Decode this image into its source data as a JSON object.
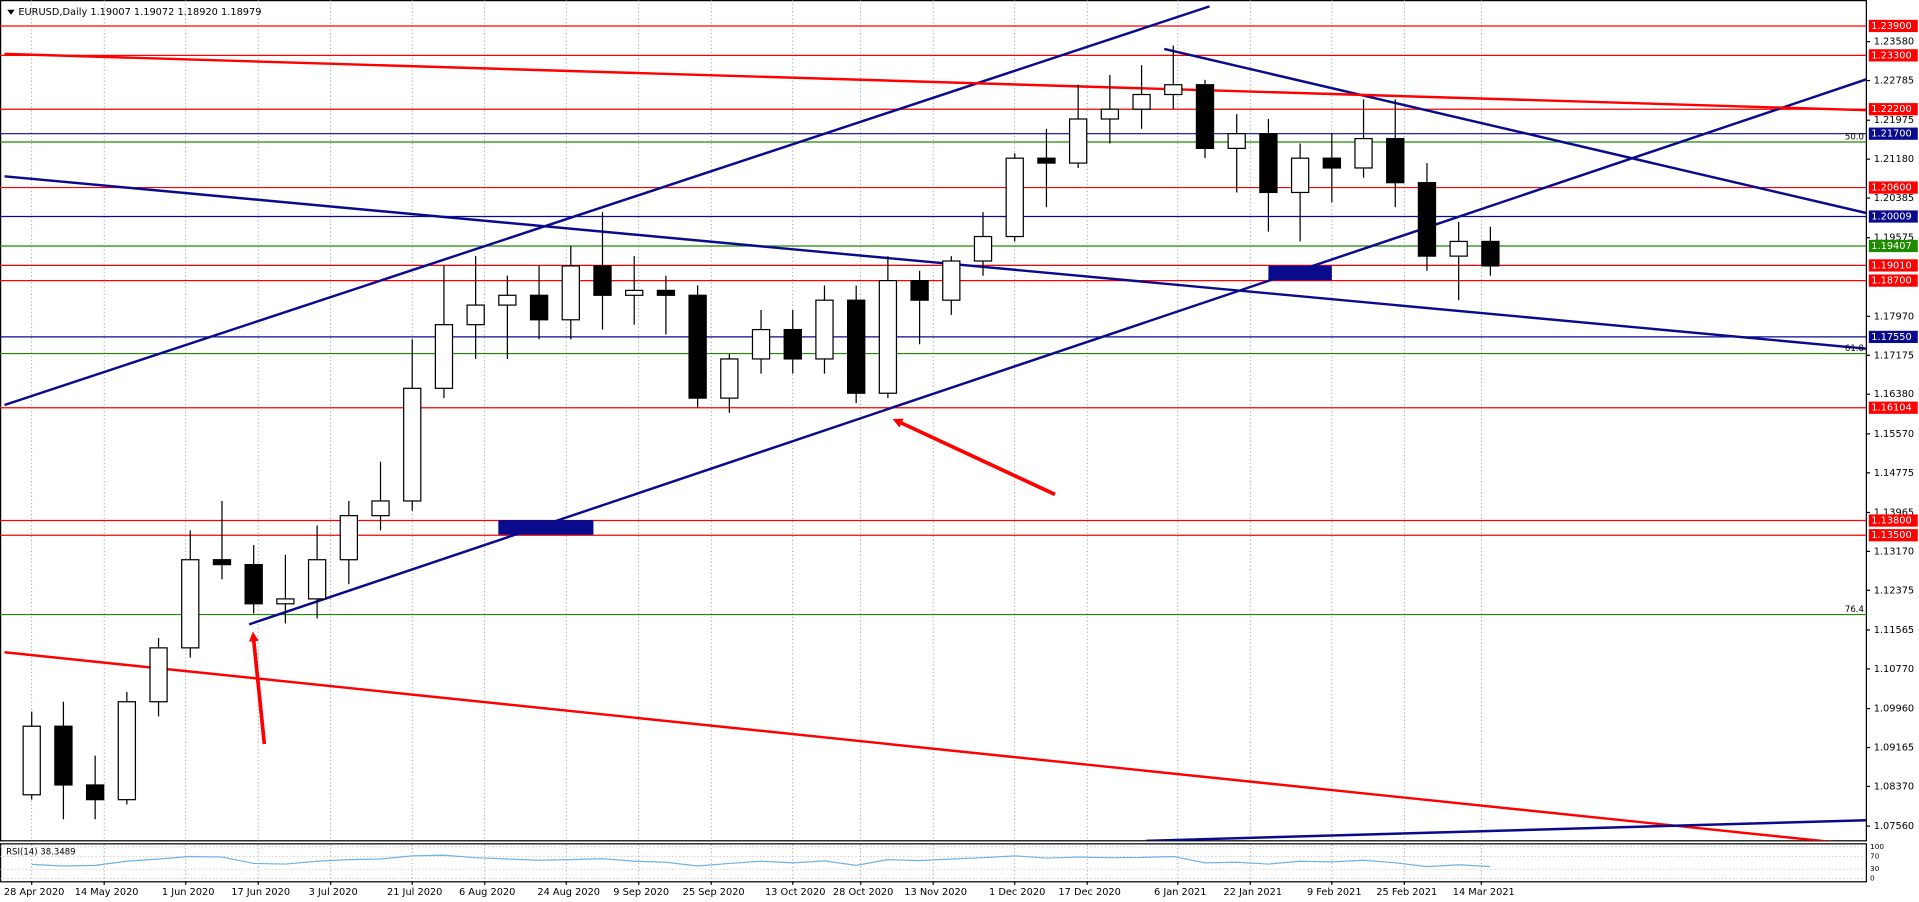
{
  "chart_data": {
    "type": "candlestick",
    "title": "EURUSD,Daily  1.19007 1.19072 1.18920 1.18979",
    "xlim": [
      "2020-04-21",
      "2021-06-07"
    ],
    "xticks": [
      {
        "value": "2020-04-28",
        "label": "28 Apr 2020"
      },
      {
        "value": "2020-05-14",
        "label": "14 May 2020"
      },
      {
        "value": "2020-06-01",
        "label": "1 Jun 2020"
      },
      {
        "value": "2020-06-17",
        "label": "17 Jun 2020"
      },
      {
        "value": "2020-07-03",
        "label": "3 Jul 2020"
      },
      {
        "value": "2020-07-21",
        "label": "21 Jul 2020"
      },
      {
        "value": "2020-08-06",
        "label": "6 Aug 2020"
      },
      {
        "value": "2020-08-24",
        "label": "24 Aug 2020"
      },
      {
        "value": "2020-09-09",
        "label": "9 Sep 2020"
      },
      {
        "value": "2020-09-25",
        "label": "25 Sep 2020"
      },
      {
        "value": "2020-10-13",
        "label": "13 Oct 2020"
      },
      {
        "value": "2020-10-28",
        "label": "28 Oct 2020"
      },
      {
        "value": "2020-11-13",
        "label": "13 Nov 2020"
      },
      {
        "value": "2020-12-01",
        "label": "1 Dec 2020"
      },
      {
        "value": "2020-12-17",
        "label": "17 Dec 2020"
      },
      {
        "value": "2021-01-06",
        "label": "6 Jan 2021"
      },
      {
        "value": "2021-01-22",
        "label": "22 Jan 2021"
      },
      {
        "value": "2021-02-09",
        "label": "9 Feb 2021"
      },
      {
        "value": "2021-02-25",
        "label": "25 Feb 2021"
      },
      {
        "value": "2021-03-14",
        "label": "14 Mar 2021"
      }
    ],
    "ylim": [
      1.0726,
      1.2443
    ],
    "yticks": [
      {
        "value": 1.2358,
        "label": "1.23580"
      },
      1.22785,
      1.21975,
      {
        "value": 1.2118,
        "label": "1.21180"
      },
      1.20385,
      1.19575,
      {
        "value": 1.1797,
        "label": "1.17970"
      },
      1.17175,
      {
        "value": 1.1638,
        "label": "1.16380"
      },
      {
        "value": 1.1557,
        "label": "1.15570"
      },
      1.14775,
      1.13965,
      {
        "value": 1.1317,
        "label": "1.13170"
      },
      1.12375,
      1.11565,
      {
        "value": 1.1077,
        "label": "1.10770"
      },
      {
        "value": 1.0996,
        "label": "1.09960"
      },
      1.09165,
      {
        "value": 1.0837,
        "label": "1.08370"
      },
      {
        "value": 1.0756,
        "label": "1.07560"
      }
    ],
    "x": [
      "2020-04-28",
      "2020-05-05",
      "2020-05-12",
      "2020-05-19",
      "2020-05-26",
      "2020-06-02",
      "2020-06-09",
      "2020-06-16",
      "2020-06-23",
      "2020-06-30",
      "2020-07-07",
      "2020-07-14",
      "2020-07-21",
      "2020-07-28",
      "2020-08-04",
      "2020-08-11",
      "2020-08-18",
      "2020-08-25",
      "2020-09-01",
      "2020-09-08",
      "2020-09-15",
      "2020-09-22",
      "2020-09-29",
      "2020-10-06",
      "2020-10-13",
      "2020-10-20",
      "2020-10-27",
      "2020-11-03",
      "2020-11-10",
      "2020-11-17",
      "2020-11-24",
      "2020-12-01",
      "2020-12-08",
      "2020-12-15",
      "2020-12-22",
      "2020-12-29",
      "2021-01-05",
      "2021-01-12",
      "2021-01-19",
      "2021-01-26",
      "2021-02-02",
      "2021-02-09",
      "2021-02-16",
      "2021-02-23",
      "2021-03-02",
      "2021-03-09",
      "2021-03-16"
    ],
    "open": [
      1.082,
      1.096,
      1.084,
      1.081,
      1.101,
      1.112,
      1.13,
      1.129,
      1.121,
      1.122,
      1.13,
      1.139,
      1.142,
      1.165,
      1.178,
      1.182,
      1.184,
      1.179,
      1.19,
      1.184,
      1.185,
      1.184,
      1.163,
      1.171,
      1.177,
      1.171,
      1.183,
      1.164,
      1.187,
      1.183,
      1.191,
      1.196,
      1.212,
      1.211,
      1.22,
      1.222,
      1.225,
      1.227,
      1.214,
      1.217,
      1.205,
      1.212,
      1.21,
      1.216,
      1.207,
      1.192,
      1.195
    ],
    "high": [
      1.099,
      1.101,
      1.09,
      1.103,
      1.114,
      1.136,
      1.142,
      1.133,
      1.131,
      1.137,
      1.142,
      1.15,
      1.175,
      1.19,
      1.192,
      1.188,
      1.19,
      1.194,
      1.201,
      1.192,
      1.188,
      1.186,
      1.172,
      1.181,
      1.181,
      1.186,
      1.186,
      1.192,
      1.189,
      1.192,
      1.201,
      1.213,
      1.218,
      1.227,
      1.229,
      1.231,
      1.235,
      1.228,
      1.221,
      1.22,
      1.215,
      1.217,
      1.224,
      1.224,
      1.211,
      1.199,
      1.198
    ],
    "low": [
      1.081,
      1.077,
      1.077,
      1.08,
      1.098,
      1.11,
      1.126,
      1.119,
      1.117,
      1.118,
      1.125,
      1.136,
      1.14,
      1.163,
      1.171,
      1.171,
      1.175,
      1.175,
      1.177,
      1.178,
      1.176,
      1.161,
      1.16,
      1.168,
      1.168,
      1.168,
      1.162,
      1.163,
      1.174,
      1.18,
      1.188,
      1.195,
      1.202,
      1.21,
      1.215,
      1.218,
      1.222,
      1.212,
      1.205,
      1.197,
      1.195,
      1.203,
      1.208,
      1.202,
      1.189,
      1.183,
      1.188
    ],
    "close": [
      1.096,
      1.084,
      1.081,
      1.101,
      1.112,
      1.13,
      1.129,
      1.121,
      1.122,
      1.13,
      1.139,
      1.142,
      1.165,
      1.178,
      1.182,
      1.184,
      1.179,
      1.19,
      1.184,
      1.185,
      1.184,
      1.163,
      1.171,
      1.177,
      1.171,
      1.183,
      1.164,
      1.187,
      1.183,
      1.191,
      1.196,
      1.212,
      1.211,
      1.22,
      1.222,
      1.225,
      1.227,
      1.214,
      1.217,
      1.205,
      1.212,
      1.21,
      1.216,
      1.207,
      1.192,
      1.195,
      1.19
    ],
    "levels": [
      {
        "value": 1.239,
        "label": "1.23900",
        "color": "#ff0000"
      },
      {
        "value": 1.233,
        "label": "1.23300",
        "color": "#ff0000"
      },
      {
        "value": 1.222,
        "label": "1.22200",
        "color": "#ff0000"
      },
      {
        "value": 1.217,
        "label": "1.21700",
        "color": "#0a0a8c"
      },
      {
        "value": 1.206,
        "label": "1.20600",
        "color": "#ff0000"
      },
      {
        "value": 1.20009,
        "color": "#0a0a8c"
      },
      {
        "value": 1.19407,
        "color": "#1e8a00"
      },
      {
        "value": 1.1901,
        "label": "1.19010",
        "color": "#ff0000"
      },
      {
        "value": 1.187,
        "label": "1.18700",
        "color": "#ff0000"
      },
      {
        "value": 1.1755,
        "label": "1.17550",
        "color": "#0a0a8c"
      },
      {
        "value": 1.16104,
        "color": "#ff0000"
      },
      {
        "value": 1.138,
        "label": "1.13800",
        "color": "#ff0000"
      },
      {
        "value": 1.135,
        "label": "1.13500",
        "color": "#ff0000"
      }
    ],
    "fib_levels": [
      {
        "value": 1.2153,
        "ratio_label": "50.0",
        "color": "#1e8a00"
      },
      {
        "value": 1.1721,
        "ratio_label": "61.8",
        "color": "#1e8a00"
      },
      {
        "value": 1.1188,
        "ratio_label": "76.4",
        "color": "#1e8a00"
      }
    ],
    "trend_lines": [
      {
        "color": "#0a0a8c",
        "points": [
          [
            "2020-04-22",
            1.1616
          ],
          [
            "2021-01-13",
            1.243
          ]
        ]
      },
      {
        "color": "#0a0a8c",
        "points": [
          [
            "2020-06-15",
            1.1168
          ],
          [
            "2021-06-07",
            1.2281
          ]
        ]
      },
      {
        "color": "#0a0a8c",
        "points": [
          [
            "2020-04-22",
            1.2083
          ],
          [
            "2021-06-07",
            1.1731
          ]
        ]
      },
      {
        "color": "#0a0a8c",
        "points": [
          [
            "2021-01-03",
            1.2343
          ],
          [
            "2021-06-07",
            1.2008
          ]
        ]
      },
      {
        "color": "#ff0000",
        "points": [
          [
            "2020-04-22",
            1.2333
          ],
          [
            "2021-06-07",
            1.2218
          ]
        ]
      },
      {
        "color": "#ff0000",
        "points": [
          [
            "2020-04-22",
            1.1111
          ],
          [
            "2021-05-31",
            1.0723
          ]
        ]
      },
      {
        "color": "#0a0a8c",
        "points": [
          [
            "2020-12-30",
            1.0726
          ],
          [
            "2021-06-07",
            1.0768
          ]
        ]
      }
    ],
    "zones": [
      {
        "color": "#0a0a8c",
        "x": [
          "2020-08-09",
          "2020-08-30"
        ],
        "y": [
          1.1351,
          1.1381
        ]
      },
      {
        "color": "#0a0a8c",
        "x": [
          "2021-01-26",
          "2021-02-09"
        ],
        "y": [
          1.18706,
          1.19006
        ]
      }
    ],
    "rsi": {
      "title": "RSI(14) 38.3489",
      "color": "#6fb3e6",
      "ylim": [
        0,
        100
      ],
      "yticks": [
        100,
        70,
        30,
        0
      ],
      "values": [
        45,
        40,
        42,
        55,
        62,
        70,
        68,
        48,
        46,
        55,
        60,
        62,
        72,
        74,
        66,
        62,
        58,
        60,
        63,
        55,
        52,
        40,
        48,
        55,
        50,
        56,
        42,
        60,
        57,
        62,
        66,
        72,
        65,
        68,
        66,
        67,
        70,
        50,
        52,
        46,
        55,
        53,
        58,
        50,
        38,
        44,
        38
      ]
    }
  }
}
